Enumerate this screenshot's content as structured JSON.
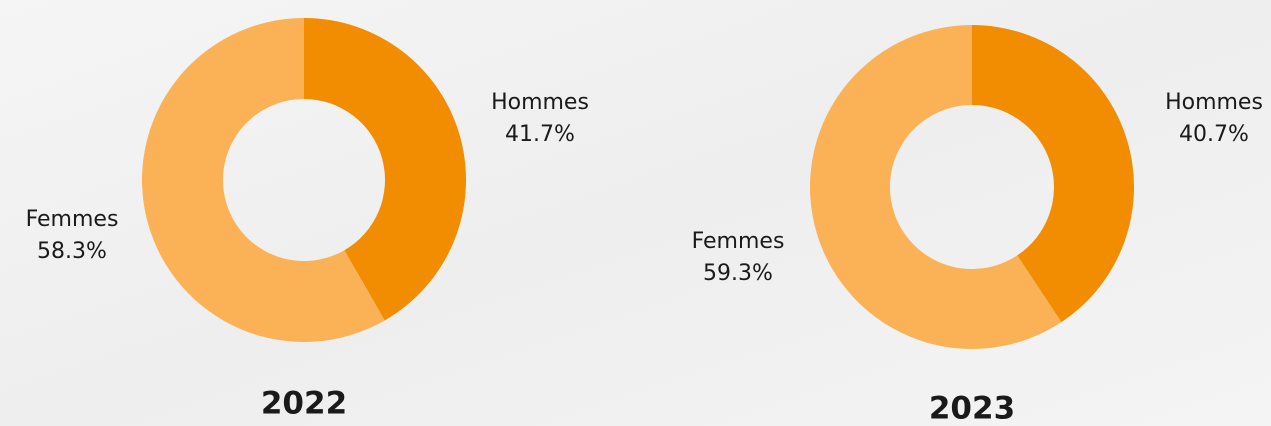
{
  "chart_data": [
    {
      "type": "donut",
      "title": "2022",
      "categories": [
        "Hommes",
        "Femmes"
      ],
      "values": [
        41.7,
        58.3
      ],
      "value_labels": [
        "41.7%",
        "58.3%"
      ],
      "colors": [
        "#f28c00",
        "#fbb257"
      ]
    },
    {
      "type": "donut",
      "title": "2023",
      "categories": [
        "Hommes",
        "Femmes"
      ],
      "values": [
        40.7,
        59.3
      ],
      "value_labels": [
        "40.7%",
        "59.3%"
      ],
      "colors": [
        "#f28c00",
        "#fbb257"
      ]
    }
  ]
}
